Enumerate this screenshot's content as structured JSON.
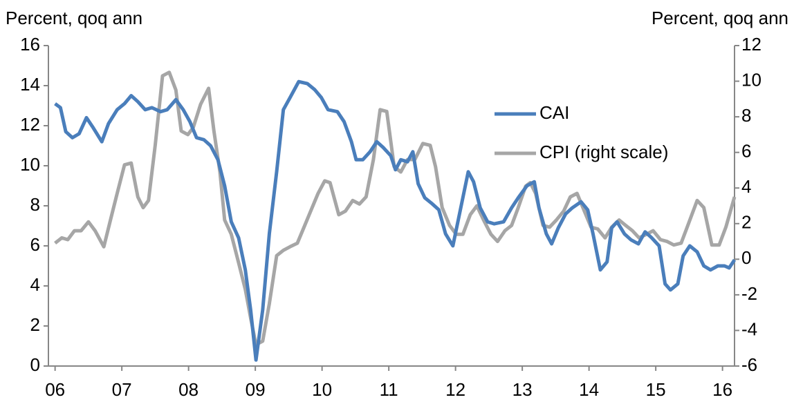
{
  "chart_data": {
    "type": "line",
    "y_label": "Percent, qoq ann",
    "y2_label": "Percent, qoq ann",
    "xlim": [
      2005.9,
      2016.18
    ],
    "xticks": [
      {
        "value": 2006,
        "label": "06"
      },
      {
        "value": 2007,
        "label": "07"
      },
      {
        "value": 2008,
        "label": "08"
      },
      {
        "value": 2009,
        "label": "09"
      },
      {
        "value": 2010,
        "label": "10"
      },
      {
        "value": 2011,
        "label": "11"
      },
      {
        "value": 2012,
        "label": "12"
      },
      {
        "value": 2013,
        "label": "13"
      },
      {
        "value": 2014,
        "label": "14"
      },
      {
        "value": 2015,
        "label": "15"
      },
      {
        "value": 2016,
        "label": "16"
      }
    ],
    "ylim": [
      0,
      16
    ],
    "yticks": [
      0,
      2,
      4,
      6,
      8,
      10,
      12,
      14,
      16
    ],
    "y2lim": [
      -6,
      12
    ],
    "y2ticks": [
      -6,
      -4,
      -2,
      0,
      2,
      4,
      6,
      8,
      10,
      12
    ],
    "grid": false,
    "legend": "upper right",
    "series": [
      {
        "name": "CAI",
        "color": "#4a7ebb",
        "axis": "y",
        "x": [
          2006.0,
          2006.08,
          2006.16,
          2006.26,
          2006.36,
          2006.47,
          2006.57,
          2006.7,
          2006.8,
          2006.93,
          2007.04,
          2007.14,
          2007.24,
          2007.35,
          2007.45,
          2007.58,
          2007.68,
          2007.81,
          2007.92,
          2008.02,
          2008.12,
          2008.23,
          2008.33,
          2008.44,
          2008.54,
          2008.64,
          2008.75,
          2008.85,
          2008.93,
          2009.01,
          2009.11,
          2009.21,
          2009.32,
          2009.42,
          2009.52,
          2009.65,
          2009.78,
          2009.89,
          2009.99,
          2010.09,
          2010.23,
          2010.33,
          2010.44,
          2010.51,
          2010.61,
          2010.72,
          2010.82,
          2010.92,
          2011.03,
          2011.1,
          2011.18,
          2011.28,
          2011.36,
          2011.44,
          2011.54,
          2011.65,
          2011.75,
          2011.85,
          2011.96,
          2012.06,
          2012.19,
          2012.27,
          2012.37,
          2012.48,
          2012.58,
          2012.72,
          2012.84,
          2012.94,
          2013.07,
          2013.18,
          2013.25,
          2013.36,
          2013.44,
          2013.54,
          2013.65,
          2013.75,
          2013.88,
          2013.98,
          2014.06,
          2014.17,
          2014.27,
          2014.34,
          2014.42,
          2014.53,
          2014.63,
          2014.74,
          2014.84,
          2014.94,
          2015.05,
          2015.14,
          2015.22,
          2015.33,
          2015.41,
          2015.51,
          2015.62,
          2015.72,
          2015.82,
          2015.93,
          2016.03,
          2016.1,
          2016.18
        ],
        "values": [
          13.1,
          12.9,
          11.7,
          11.4,
          11.6,
          12.4,
          11.9,
          11.2,
          12.1,
          12.8,
          13.1,
          13.5,
          13.2,
          12.8,
          12.9,
          12.7,
          12.8,
          13.3,
          12.8,
          12.2,
          11.4,
          11.3,
          11.0,
          10.3,
          9.0,
          7.2,
          6.4,
          4.8,
          2.8,
          0.3,
          2.8,
          6.6,
          9.7,
          12.8,
          13.4,
          14.2,
          14.1,
          13.8,
          13.4,
          12.8,
          12.7,
          12.2,
          11.2,
          10.3,
          10.3,
          10.7,
          11.2,
          10.9,
          10.5,
          9.8,
          10.3,
          10.2,
          10.7,
          9.1,
          8.4,
          8.1,
          7.8,
          6.6,
          6.0,
          7.6,
          9.7,
          9.2,
          7.9,
          7.2,
          7.1,
          7.2,
          7.9,
          8.4,
          9.0,
          9.2,
          7.9,
          6.6,
          6.1,
          6.9,
          7.6,
          7.9,
          8.2,
          7.8,
          6.6,
          4.8,
          5.2,
          6.9,
          7.2,
          6.6,
          6.3,
          6.1,
          6.7,
          6.4,
          6.0,
          4.1,
          3.8,
          4.1,
          5.5,
          6.0,
          5.7,
          5.0,
          4.8,
          5.0,
          5.0,
          4.9,
          5.3
        ]
      },
      {
        "name": "CPI (right scale)",
        "color": "#a6a6a6",
        "axis": "y2",
        "x": [
          2006.0,
          2006.1,
          2006.19,
          2006.29,
          2006.39,
          2006.5,
          2006.6,
          2006.73,
          2006.83,
          2006.93,
          2007.04,
          2007.14,
          2007.24,
          2007.32,
          2007.4,
          2007.5,
          2007.61,
          2007.71,
          2007.81,
          2007.89,
          2007.99,
          2008.07,
          2008.18,
          2008.3,
          2008.38,
          2008.47,
          2008.54,
          2008.64,
          2008.75,
          2008.85,
          2008.93,
          2009.01,
          2009.11,
          2009.21,
          2009.32,
          2009.42,
          2009.52,
          2009.63,
          2009.73,
          2009.83,
          2009.94,
          2010.04,
          2010.12,
          2010.25,
          2010.35,
          2010.46,
          2010.56,
          2010.66,
          2010.77,
          2010.87,
          2010.97,
          2011.08,
          2011.18,
          2011.28,
          2011.39,
          2011.51,
          2011.62,
          2011.7,
          2011.8,
          2011.91,
          2012.01,
          2012.11,
          2012.22,
          2012.32,
          2012.42,
          2012.53,
          2012.63,
          2012.74,
          2012.84,
          2012.94,
          2013.05,
          2013.12,
          2013.2,
          2013.31,
          2013.41,
          2013.51,
          2013.62,
          2013.72,
          2013.82,
          2013.93,
          2014.03,
          2014.13,
          2014.24,
          2014.34,
          2014.45,
          2014.55,
          2014.65,
          2014.75,
          2014.86,
          2014.96,
          2015.07,
          2015.17,
          2015.27,
          2015.38,
          2015.48,
          2015.62,
          2015.72,
          2015.84,
          2015.95,
          2016.05,
          2016.18
        ],
        "values": [
          0.9,
          1.2,
          1.1,
          1.6,
          1.6,
          2.1,
          1.6,
          0.7,
          2.2,
          3.7,
          5.3,
          5.4,
          3.5,
          2.9,
          3.3,
          6.4,
          10.3,
          10.5,
          9.5,
          7.2,
          7.0,
          7.4,
          8.7,
          9.6,
          7.2,
          4.9,
          2.2,
          1.4,
          -0.2,
          -1.7,
          -3.3,
          -4.8,
          -4.6,
          -2.5,
          0.2,
          0.5,
          0.7,
          0.9,
          1.8,
          2.7,
          3.7,
          4.4,
          4.3,
          2.5,
          2.7,
          3.3,
          3.1,
          3.5,
          5.6,
          8.4,
          8.3,
          5.2,
          4.9,
          5.6,
          5.6,
          6.5,
          6.4,
          5.2,
          2.9,
          1.9,
          1.4,
          1.4,
          2.5,
          3.0,
          2.2,
          1.4,
          1.0,
          1.6,
          1.9,
          2.9,
          4.1,
          4.3,
          3.7,
          1.9,
          1.8,
          2.2,
          2.7,
          3.5,
          3.7,
          2.7,
          1.8,
          1.7,
          1.2,
          1.8,
          2.2,
          1.9,
          1.6,
          1.2,
          1.4,
          1.6,
          1.1,
          1.0,
          0.8,
          0.9,
          1.9,
          3.3,
          2.9,
          0.8,
          0.8,
          1.8,
          3.5
        ]
      }
    ]
  }
}
